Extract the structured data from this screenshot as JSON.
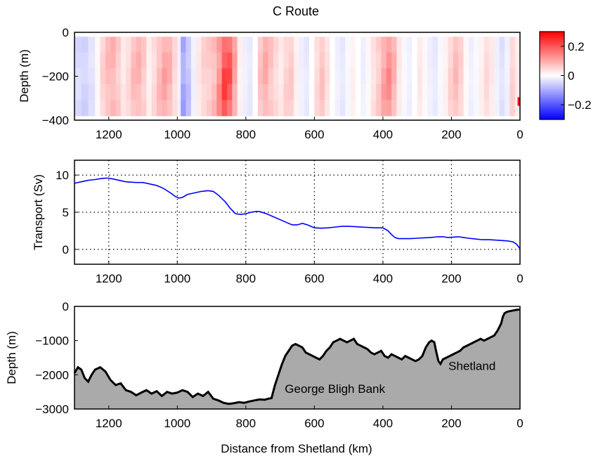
{
  "figure": {
    "title": "C Route",
    "shared_xlabel": "Distance from Shetland (km)"
  },
  "chart_data": [
    {
      "type": "heatmap",
      "ylabel": "Depth (m)",
      "xlim": [
        1300,
        0
      ],
      "ylim": [
        -400,
        0
      ],
      "data_depth_range": [
        -380,
        -20
      ],
      "xticks": [
        1200,
        1000,
        800,
        600,
        400,
        200,
        0
      ],
      "yticks": [
        0,
        -200,
        -400
      ],
      "ytick_labels": [
        "0",
        "−200",
        "−400"
      ],
      "colorbar": {
        "range": [
          -0.3,
          0.3
        ],
        "ticks": [
          0.2,
          0,
          -0.2
        ],
        "tick_labels": [
          "0.2",
          "0",
          "−0.2"
        ],
        "colors": {
          "low": "#0000ff",
          "mid": "#ffffff",
          "high": "#ff0000"
        }
      },
      "columns": [
        {
          "x": 1300,
          "v": -0.05
        },
        {
          "x": 1280,
          "v": -0.06
        },
        {
          "x": 1260,
          "v": -0.04
        },
        {
          "x": 1240,
          "v": 0.01
        },
        {
          "x": 1225,
          "v": 0.06
        },
        {
          "x": 1210,
          "v": 0.09
        },
        {
          "x": 1195,
          "v": 0.1
        },
        {
          "x": 1180,
          "v": 0.07
        },
        {
          "x": 1165,
          "v": 0.03
        },
        {
          "x": 1150,
          "v": 0.05
        },
        {
          "x": 1135,
          "v": 0.09
        },
        {
          "x": 1120,
          "v": 0.1
        },
        {
          "x": 1105,
          "v": 0.07
        },
        {
          "x": 1090,
          "v": 0.02
        },
        {
          "x": 1075,
          "v": 0.05
        },
        {
          "x": 1060,
          "v": 0.09
        },
        {
          "x": 1045,
          "v": 0.12
        },
        {
          "x": 1030,
          "v": 0.1
        },
        {
          "x": 1015,
          "v": 0.05
        },
        {
          "x": 1000,
          "v": -0.02
        },
        {
          "x": 990,
          "v": -0.12
        },
        {
          "x": 975,
          "v": -0.08
        },
        {
          "x": 960,
          "v": -0.02
        },
        {
          "x": 945,
          "v": 0.03
        },
        {
          "x": 930,
          "v": 0.06
        },
        {
          "x": 915,
          "v": 0.07
        },
        {
          "x": 900,
          "v": 0.09
        },
        {
          "x": 885,
          "v": 0.15
        },
        {
          "x": 870,
          "v": 0.24
        },
        {
          "x": 855,
          "v": 0.22
        },
        {
          "x": 840,
          "v": 0.12
        },
        {
          "x": 825,
          "v": 0.02
        },
        {
          "x": 810,
          "v": -0.02
        },
        {
          "x": 795,
          "v": -0.03
        },
        {
          "x": 780,
          "v": 0.0
        },
        {
          "x": 765,
          "v": 0.08
        },
        {
          "x": 750,
          "v": 0.11
        },
        {
          "x": 735,
          "v": 0.08
        },
        {
          "x": 720,
          "v": 0.05
        },
        {
          "x": 705,
          "v": 0.03
        },
        {
          "x": 690,
          "v": 0.06
        },
        {
          "x": 675,
          "v": 0.07
        },
        {
          "x": 660,
          "v": 0.02
        },
        {
          "x": 645,
          "v": -0.02
        },
        {
          "x": 630,
          "v": -0.03
        },
        {
          "x": 615,
          "v": 0.0
        },
        {
          "x": 600,
          "v": 0.05
        },
        {
          "x": 585,
          "v": 0.08
        },
        {
          "x": 570,
          "v": 0.04
        },
        {
          "x": 555,
          "v": 0.0
        },
        {
          "x": 540,
          "v": -0.02
        },
        {
          "x": 525,
          "v": -0.03
        },
        {
          "x": 510,
          "v": -0.01
        },
        {
          "x": 495,
          "v": 0.02
        },
        {
          "x": 480,
          "v": 0.0
        },
        {
          "x": 465,
          "v": -0.02
        },
        {
          "x": 450,
          "v": 0.01
        },
        {
          "x": 435,
          "v": 0.04
        },
        {
          "x": 420,
          "v": 0.07
        },
        {
          "x": 405,
          "v": 0.12
        },
        {
          "x": 390,
          "v": 0.15
        },
        {
          "x": 375,
          "v": 0.1
        },
        {
          "x": 360,
          "v": 0.03
        },
        {
          "x": 345,
          "v": -0.01
        },
        {
          "x": 330,
          "v": -0.02
        },
        {
          "x": 315,
          "v": 0.0
        },
        {
          "x": 300,
          "v": 0.03
        },
        {
          "x": 285,
          "v": 0.01
        },
        {
          "x": 270,
          "v": -0.02
        },
        {
          "x": 255,
          "v": -0.03
        },
        {
          "x": 240,
          "v": -0.01
        },
        {
          "x": 225,
          "v": 0.02
        },
        {
          "x": 210,
          "v": 0.06
        },
        {
          "x": 195,
          "v": 0.09
        },
        {
          "x": 180,
          "v": 0.06
        },
        {
          "x": 165,
          "v": 0.01
        },
        {
          "x": 150,
          "v": -0.02
        },
        {
          "x": 135,
          "v": -0.01
        },
        {
          "x": 120,
          "v": 0.02
        },
        {
          "x": 105,
          "v": 0.05
        },
        {
          "x": 90,
          "v": 0.03
        },
        {
          "x": 75,
          "v": -0.02
        },
        {
          "x": 60,
          "v": -0.04
        },
        {
          "x": 45,
          "v": -0.02
        },
        {
          "x": 30,
          "v": 0.06
        },
        {
          "x": 15,
          "v": 0.03
        },
        {
          "x": 5,
          "v": 0.01
        },
        {
          "x": 0,
          "v": 0.0
        }
      ],
      "anomalies": [
        {
          "x": 3,
          "depth": -315,
          "v": 0.28
        }
      ]
    },
    {
      "type": "line",
      "ylabel": "Transport (Sv)",
      "xlim": [
        1300,
        0
      ],
      "ylim": [
        -2,
        12
      ],
      "xticks": [
        1200,
        1000,
        800,
        600,
        400,
        200,
        0
      ],
      "yticks": [
        0,
        5,
        10
      ],
      "grid": true,
      "series": [
        {
          "color": "#0000ff",
          "x": [
            1300,
            1280,
            1260,
            1240,
            1220,
            1205,
            1190,
            1170,
            1150,
            1120,
            1100,
            1080,
            1060,
            1040,
            1020,
            1005,
            995,
            985,
            970,
            950,
            930,
            910,
            895,
            880,
            860,
            845,
            830,
            815,
            800,
            785,
            770,
            760,
            740,
            720,
            700,
            680,
            665,
            650,
            635,
            620,
            600,
            580,
            560,
            540,
            520,
            500,
            480,
            460,
            440,
            420,
            400,
            385,
            375,
            365,
            355,
            340,
            320,
            300,
            280,
            260,
            240,
            225,
            210,
            195,
            180,
            165,
            150,
            130,
            110,
            90,
            70,
            55,
            40,
            30,
            20,
            10,
            5,
            0
          ],
          "y": [
            8.9,
            9.1,
            9.3,
            9.4,
            9.55,
            9.6,
            9.5,
            9.3,
            9.1,
            9.0,
            9.0,
            8.8,
            8.6,
            8.2,
            7.6,
            7.1,
            6.9,
            7.0,
            7.4,
            7.6,
            7.8,
            7.9,
            7.8,
            7.3,
            6.4,
            5.5,
            4.8,
            4.7,
            4.8,
            5.0,
            5.1,
            5.1,
            4.8,
            4.4,
            4.0,
            3.6,
            3.3,
            3.3,
            3.5,
            3.3,
            2.9,
            2.85,
            2.9,
            3.0,
            3.1,
            3.1,
            3.05,
            3.0,
            2.95,
            2.9,
            2.9,
            2.5,
            2.0,
            1.6,
            1.45,
            1.45,
            1.45,
            1.5,
            1.55,
            1.6,
            1.7,
            1.7,
            1.6,
            1.65,
            1.7,
            1.6,
            1.5,
            1.4,
            1.3,
            1.3,
            1.25,
            1.2,
            1.15,
            1.1,
            1.0,
            0.7,
            0.4,
            0.1
          ]
        }
      ]
    },
    {
      "type": "area",
      "ylabel": "Depth (m)",
      "xlim": [
        1300,
        0
      ],
      "ylim": [
        -3000,
        0
      ],
      "xticks": [
        1200,
        1000,
        800,
        600,
        400,
        200,
        0
      ],
      "yticks": [
        0,
        -1000,
        -2000,
        -3000
      ],
      "ytick_labels": [
        "0",
        "−1000",
        "−2000",
        "−3000"
      ],
      "fill_color": "#aaaaaa",
      "line_color": "#000000",
      "annotations": [
        {
          "text": "George Bligh Bank",
          "x": 540,
          "y": -2530
        },
        {
          "text": "Shetland",
          "x": 140,
          "y": -1860
        }
      ],
      "series": [
        {
          "x": [
            1300,
            1290,
            1280,
            1270,
            1260,
            1250,
            1240,
            1225,
            1210,
            1195,
            1180,
            1165,
            1150,
            1135,
            1120,
            1105,
            1090,
            1075,
            1060,
            1045,
            1030,
            1015,
            1000,
            985,
            970,
            955,
            940,
            925,
            910,
            895,
            880,
            865,
            850,
            835,
            820,
            805,
            790,
            775,
            760,
            745,
            735,
            725,
            715,
            705,
            695,
            685,
            675,
            665,
            655,
            645,
            635,
            625,
            615,
            605,
            595,
            585,
            575,
            565,
            555,
            545,
            535,
            525,
            515,
            505,
            495,
            485,
            475,
            465,
            455,
            445,
            435,
            425,
            415,
            405,
            395,
            385,
            375,
            365,
            355,
            345,
            335,
            325,
            315,
            305,
            295,
            285,
            275,
            265,
            258,
            250,
            245,
            238,
            232,
            225,
            215,
            205,
            195,
            185,
            175,
            165,
            155,
            145,
            135,
            125,
            115,
            105,
            95,
            85,
            75,
            65,
            55,
            50,
            45,
            40,
            35,
            30,
            20,
            10,
            0
          ],
          "y": [
            -1950,
            -1780,
            -1850,
            -2100,
            -2200,
            -2000,
            -1850,
            -1780,
            -1900,
            -2150,
            -2300,
            -2250,
            -2450,
            -2500,
            -2600,
            -2520,
            -2450,
            -2550,
            -2480,
            -2620,
            -2500,
            -2550,
            -2520,
            -2450,
            -2500,
            -2650,
            -2550,
            -2620,
            -2500,
            -2700,
            -2750,
            -2820,
            -2850,
            -2830,
            -2800,
            -2820,
            -2780,
            -2750,
            -2720,
            -2730,
            -2700,
            -2680,
            -2300,
            -2000,
            -1700,
            -1450,
            -1300,
            -1150,
            -1100,
            -1150,
            -1200,
            -1350,
            -1400,
            -1450,
            -1500,
            -1550,
            -1450,
            -1300,
            -1200,
            -1050,
            -1000,
            -950,
            -1000,
            -1050,
            -1000,
            -950,
            -1100,
            -1150,
            -1200,
            -1250,
            -1350,
            -1400,
            -1350,
            -1300,
            -1450,
            -1500,
            -1400,
            -1450,
            -1500,
            -1550,
            -1450,
            -1500,
            -1550,
            -1600,
            -1550,
            -1450,
            -1200,
            -1050,
            -1000,
            -1050,
            -1300,
            -1600,
            -1680,
            -1550,
            -1500,
            -1450,
            -1400,
            -1350,
            -1300,
            -1200,
            -1150,
            -1100,
            -1050,
            -1000,
            -950,
            -1000,
            -950,
            -900,
            -850,
            -700,
            -500,
            -300,
            -200,
            -170,
            -150,
            -140,
            -120,
            -100,
            -90
          ]
        }
      ]
    }
  ]
}
